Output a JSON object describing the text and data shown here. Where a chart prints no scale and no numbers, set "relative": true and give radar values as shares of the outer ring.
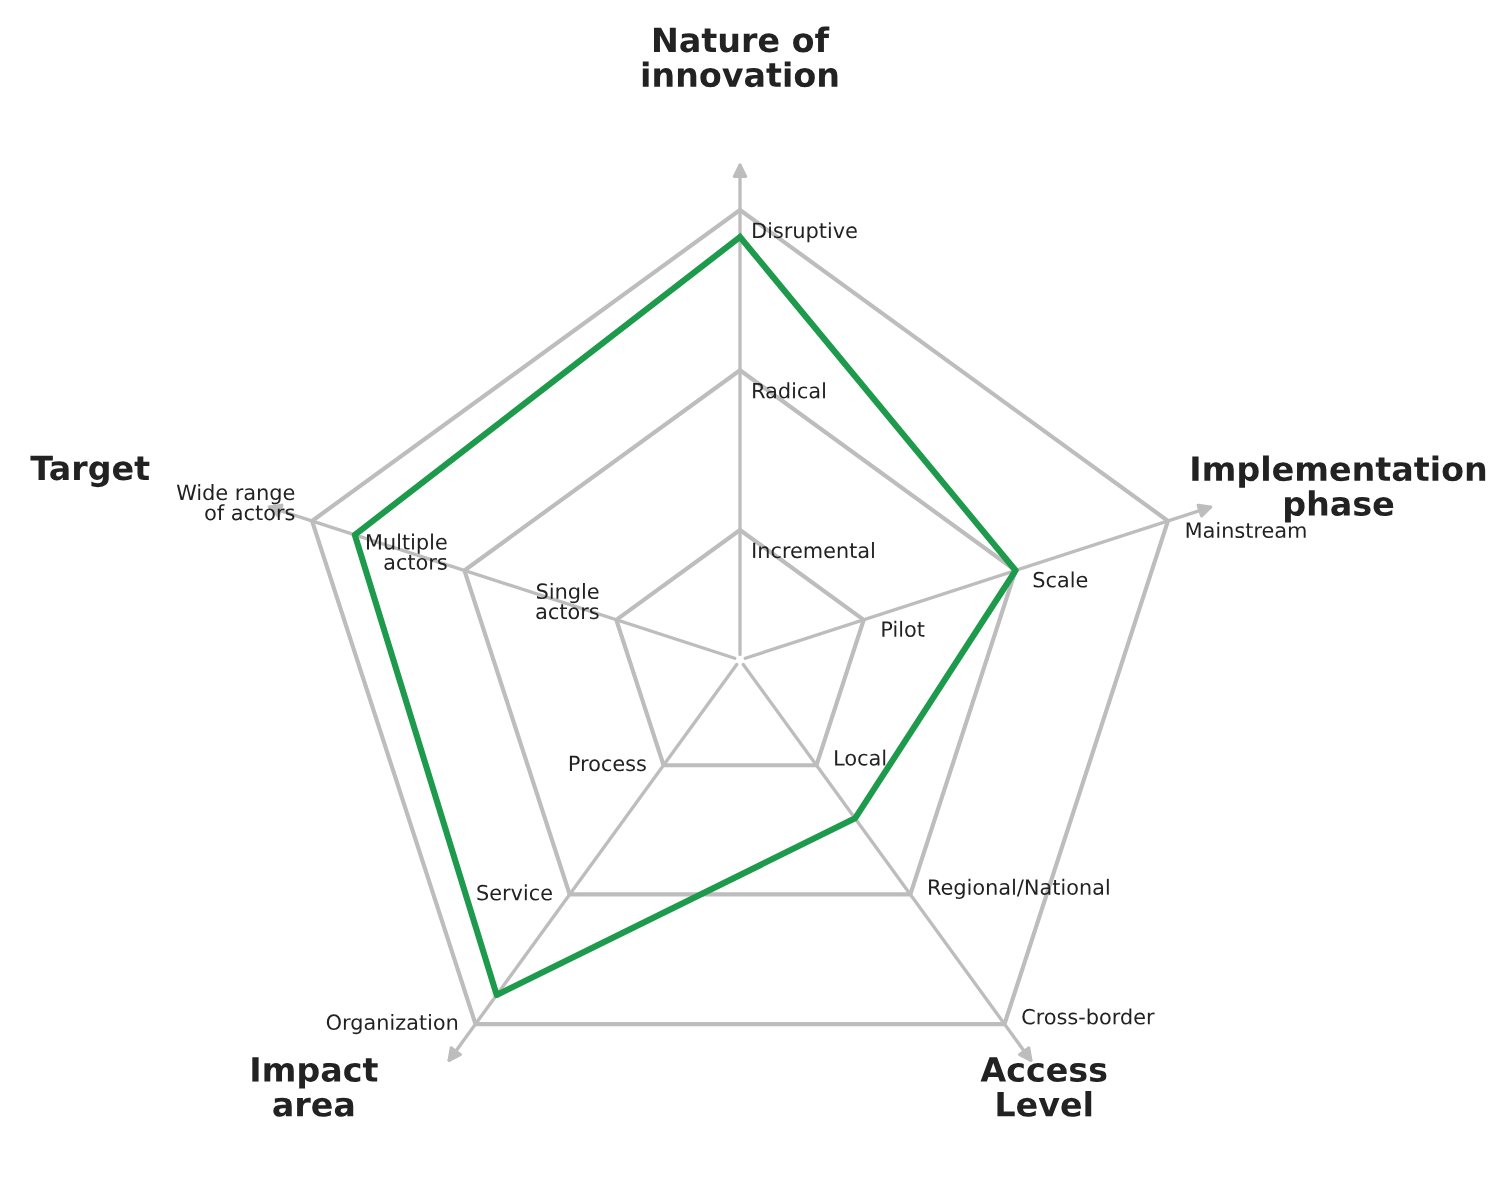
{
  "chart_data": {
    "type": "radar",
    "relative": true,
    "categories": [
      "Nature of\ninnovation",
      "Implementation\nphase",
      "Access\nLevel",
      "Impact\narea",
      "Target"
    ],
    "series": [
      {
        "color": "#1e9a4c",
        "values": [
          0.94,
          0.644,
          0.435,
          0.92,
          0.9
        ]
      }
    ],
    "grid": true,
    "annotations": [
      "Incremental",
      "Radical",
      "Disruptive",
      "Pilot",
      "Scale",
      "Mainstream",
      "Local",
      "Regional/National",
      "Cross-border",
      "Process",
      "Service",
      "Organization",
      "Single\nactors",
      "Multiple\nactors",
      "Wide range\nof actors"
    ]
  }
}
